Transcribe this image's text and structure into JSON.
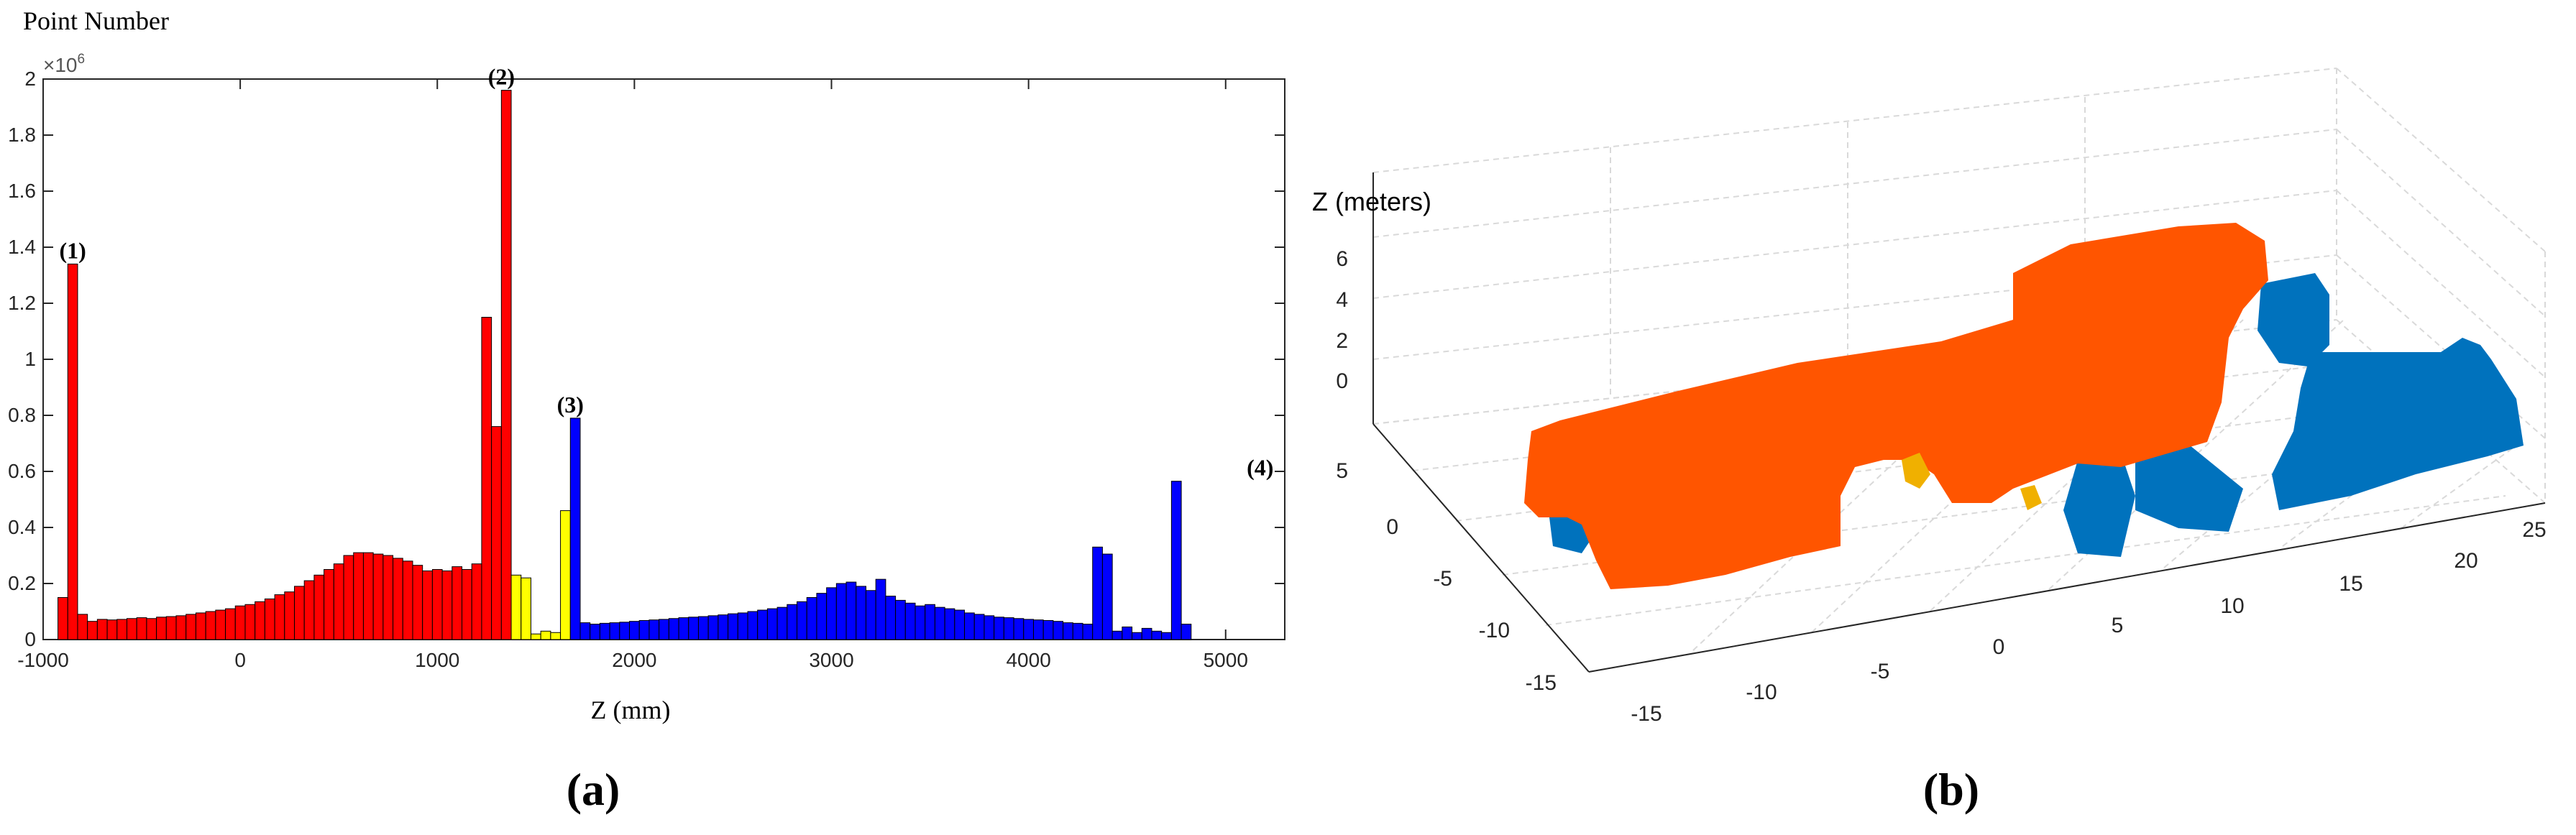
{
  "panel_labels": {
    "a": "(a)",
    "b": "(b)"
  },
  "chart_data": [
    {
      "type": "bar",
      "ylabel": "Point Number",
      "xlabel": "Z (mm)",
      "y_exponent_base": "×10",
      "y_exponent_power": "6",
      "xlim": [
        -1000,
        5300
      ],
      "ylim": [
        0,
        2000000
      ],
      "x_ticks": [
        -1000,
        0,
        1000,
        2000,
        3000,
        4000,
        5000
      ],
      "y_ticks": [
        0,
        200000,
        400000,
        600000,
        800000,
        1000000,
        1200000,
        1400000,
        1600000,
        1800000,
        2000000
      ],
      "y_tick_labels": [
        "0",
        "0.2",
        "0.4",
        "0.6",
        "0.8",
        "1",
        "1.2",
        "1.4",
        "1.6",
        "1.8",
        "2"
      ],
      "bin_width": 50,
      "bin_start": -925,
      "colors": {
        "red": "#ff0000",
        "yellow": "#ffff00",
        "blue": "#0000ff",
        "edge": "#000000"
      },
      "annotations": [
        {
          "label": "(1)",
          "x": -850,
          "y": 1340000
        },
        {
          "label": "(2)",
          "x": 1325,
          "y": 1960000
        },
        {
          "label": "(3)",
          "x": 1675,
          "y": 790000
        },
        {
          "label": "(4)",
          "x": 5175,
          "y": 565000
        }
      ],
      "series": [
        {
          "color": "red",
          "values": [
            150000,
            1340000,
            90000,
            65000,
            72000,
            70000,
            72000,
            75000,
            78000,
            75000,
            80000,
            82000,
            85000,
            90000,
            95000,
            100000,
            105000,
            110000,
            120000,
            125000,
            135000,
            145000,
            160000,
            170000,
            190000,
            210000,
            230000,
            250000,
            270000,
            300000,
            310000,
            310000,
            305000,
            300000,
            290000,
            280000,
            265000,
            245000,
            250000,
            245000,
            260000,
            250000,
            270000,
            1150000,
            760000,
            1960000
          ]
        },
        {
          "color": "yellow",
          "values": [
            230000,
            220000,
            20000,
            30000,
            25000,
            460000
          ]
        },
        {
          "color": "blue",
          "values": [
            790000,
            60000,
            55000,
            58000,
            60000,
            62000,
            65000,
            68000,
            70000,
            72000,
            75000,
            78000,
            80000,
            82000,
            85000,
            88000,
            92000,
            95000,
            100000,
            105000,
            110000,
            115000,
            125000,
            135000,
            150000,
            165000,
            185000,
            200000,
            205000,
            190000,
            175000,
            215000,
            155000,
            140000,
            130000,
            120000,
            125000,
            115000,
            110000,
            105000,
            95000,
            90000,
            85000,
            80000,
            78000,
            75000,
            72000,
            70000,
            68000,
            65000,
            60000,
            58000,
            55000,
            330000,
            305000,
            30000,
            45000,
            25000,
            40000,
            30000,
            25000,
            565000,
            55000
          ]
        }
      ]
    },
    {
      "type": "scatter",
      "title": "",
      "zlabel": "Z (meters)",
      "z_ticks": [
        "0",
        "2",
        "4",
        "6"
      ],
      "y_ticks": [
        "5",
        "0",
        "-5",
        "-10",
        "-15"
      ],
      "x_ticks": [
        "-15",
        "-10",
        "-5",
        "0",
        "5",
        "10",
        "15",
        "20",
        "25"
      ],
      "grid": true,
      "colors": {
        "orange": "#ff5500",
        "blue": "#0072bd",
        "yellow": "#f0b000",
        "grid": "#d9d9d9"
      }
    }
  ]
}
